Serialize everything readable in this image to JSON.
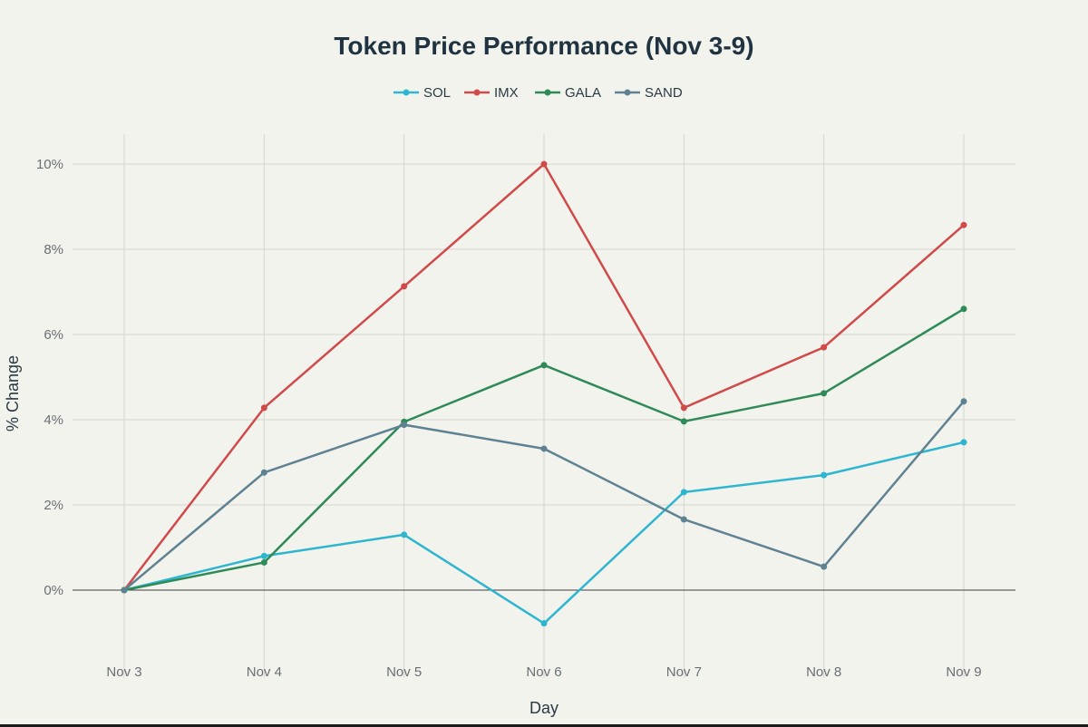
{
  "chart_data": {
    "type": "line",
    "title": "Token Price Performance (Nov 3-9)",
    "xlabel": "Day",
    "ylabel": "% Change",
    "categories": [
      "Nov 3",
      "Nov 4",
      "Nov 5",
      "Nov 6",
      "Nov 7",
      "Nov 8",
      "Nov 9"
    ],
    "ylim": [
      -1.5,
      10.7
    ],
    "yticks": [
      0,
      2,
      4,
      6,
      8,
      10
    ],
    "ytick_labels": [
      "0%",
      "2%",
      "4%",
      "6%",
      "8%",
      "10%"
    ],
    "grid": true,
    "legend_position": "top-center",
    "series": [
      {
        "name": "SOL",
        "color": "#2eb5cf",
        "values": [
          0,
          0.8,
          1.3,
          -0.78,
          2.3,
          2.7,
          3.47
        ]
      },
      {
        "name": "IMX",
        "color": "#d04a4a",
        "values": [
          0,
          4.28,
          7.13,
          10.0,
          4.28,
          5.7,
          8.57
        ]
      },
      {
        "name": "GALA",
        "color": "#2e8a57",
        "values": [
          0,
          0.65,
          3.95,
          5.28,
          3.96,
          4.62,
          6.6
        ]
      },
      {
        "name": "SAND",
        "color": "#5f8292",
        "values": [
          0,
          2.76,
          3.88,
          3.32,
          1.66,
          0.55,
          4.43
        ]
      }
    ]
  }
}
